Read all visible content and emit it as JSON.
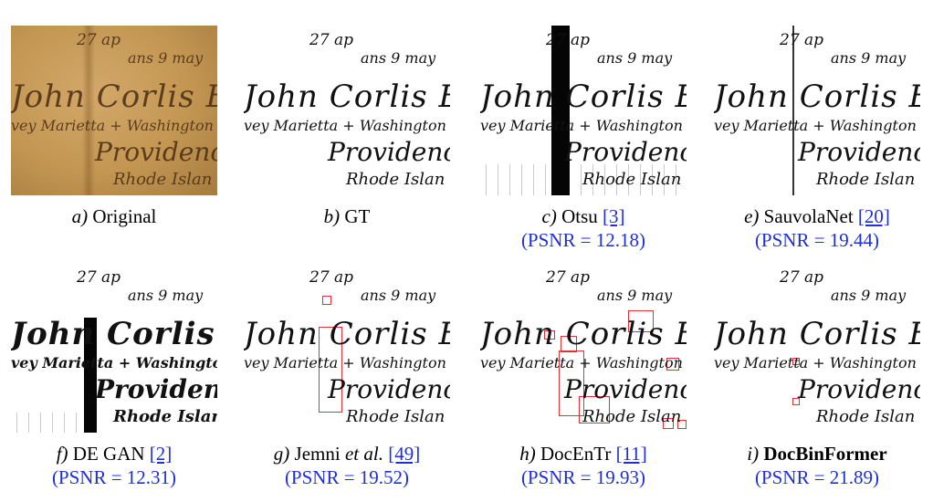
{
  "panels": [
    {
      "letter": "a",
      "method": "Original",
      "ref": "",
      "psnr": "",
      "variant": "orig"
    },
    {
      "letter": "b",
      "method": "GT",
      "ref": "",
      "psnr": "",
      "variant": "clean"
    },
    {
      "letter": "c",
      "method": "Otsu",
      "ref": "[3]",
      "psnr": "(PSNR = 12.18)",
      "variant": "otsu"
    },
    {
      "letter": "e",
      "method": "SauvolaNet",
      "ref": "[20]",
      "psnr": "(PSNR = 19.44)",
      "variant": "sauvola"
    },
    {
      "letter": "f",
      "method": "DE GAN",
      "ref": "[2]",
      "psnr": "(PSNR = 12.31)",
      "variant": "degan"
    },
    {
      "letter": "g",
      "method": "Jemni",
      "method_suffix": "et al.",
      "ref": "[49]",
      "psnr": "(PSNR = 19.52)",
      "variant": "jemni"
    },
    {
      "letter": "h",
      "method": "DocEnTr",
      "ref": "[11]",
      "psnr": "(PSNR = 19.93)",
      "variant": "docentr"
    },
    {
      "letter": "i",
      "method": "DocBinFormer",
      "ref": "",
      "psnr": "(PSNR = 21.89)",
      "variant": "docbin"
    }
  ],
  "handwriting": {
    "line1": "27 ap",
    "line2": "ans 9 may",
    "line3": "John Corlis Esq",
    "line4": "vey Marietta + Washington",
    "line5": "Providence",
    "line6": "Rhode Islan"
  },
  "colors": {
    "link_blue": "#1f2fd6",
    "error_red": "#e0303a",
    "paper": "#c39652"
  }
}
